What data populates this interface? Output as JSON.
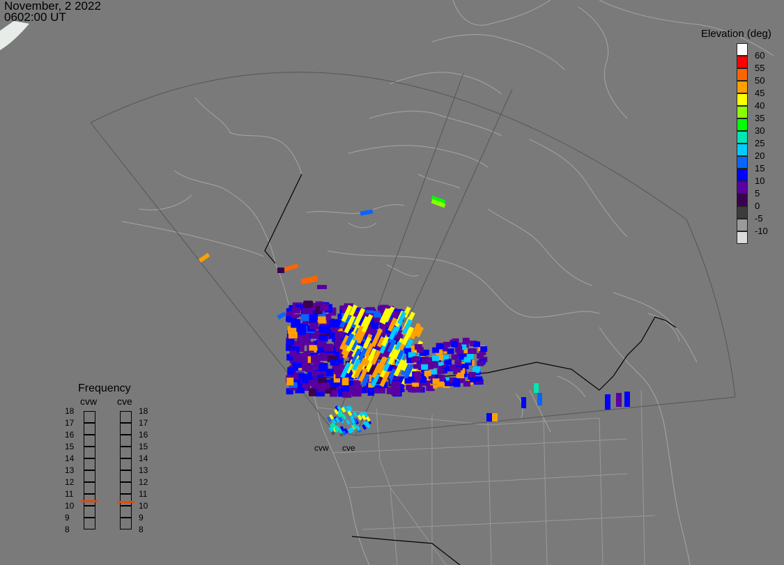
{
  "header": {
    "date": "November, 2 2022",
    "time": "0602:00 UT"
  },
  "legend": {
    "title": "Elevation (deg)",
    "items": [
      {
        "label": "60",
        "color": "#ffffff"
      },
      {
        "label": "55",
        "color": "#ff0000"
      },
      {
        "label": "50",
        "color": "#ff6400"
      },
      {
        "label": "45",
        "color": "#ffa000"
      },
      {
        "label": "40",
        "color": "#ffff00"
      },
      {
        "label": "35",
        "color": "#8cff00"
      },
      {
        "label": "30",
        "color": "#00ff00"
      },
      {
        "label": "25",
        "color": "#00e6b4"
      },
      {
        "label": "20",
        "color": "#00ccff"
      },
      {
        "label": "15",
        "color": "#0a64ff"
      },
      {
        "label": "10",
        "color": "#0000ff"
      },
      {
        "label": "5",
        "color": "#5a00a0"
      },
      {
        "label": "0",
        "color": "#3c0050"
      },
      {
        "label": "-5",
        "color": "#3c3c3c"
      },
      {
        "label": "-10",
        "color": "#9a9a9a"
      },
      {
        "label": "",
        "color": "#dcdcdc"
      }
    ]
  },
  "frequency": {
    "title": "Frequency",
    "radars": [
      "cvw",
      "cve"
    ],
    "levels": [
      "18",
      "17",
      "16",
      "15",
      "14",
      "13",
      "12",
      "11",
      "10",
      "9",
      "8"
    ],
    "current_mhz": {
      "cvw": 10.9,
      "cve": 10.8
    }
  },
  "sites": [
    "cvw",
    "cve"
  ],
  "map": {
    "background": "#7a7a7a",
    "coast_color": "#a6a6a6",
    "border_color": "#000000",
    "fov_color": "#555555"
  }
}
